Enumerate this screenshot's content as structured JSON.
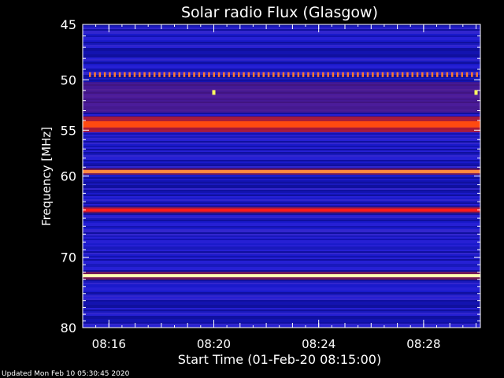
{
  "chart_data": {
    "type": "heatmap",
    "title": "Solar radio Flux (Glasgow)",
    "xlabel": "Start Time (01-Feb-20 08:15:00)",
    "ylabel": "Frequency [MHz]",
    "x_unit": "time (HH:MM)",
    "xlim": [
      "08:15:00",
      "08:30:10"
    ],
    "ylim": [
      45,
      80
    ],
    "y_log_scale": true,
    "x_ticks": [
      "08:16",
      "08:20",
      "08:24",
      "08:28"
    ],
    "y_ticks": [
      45,
      50,
      55,
      60,
      70,
      80
    ],
    "colormap": [
      "#1a1acc",
      "#3a2ad0",
      "#7a1a7a",
      "#c81a1a",
      "#ff3a1a",
      "#ffa040",
      "#ffff80",
      "#ffffff"
    ],
    "background_level": "low (blue)",
    "emission_bands": [
      {
        "freq_mhz": 49.5,
        "intensity": "high, pulsed dotted",
        "color": "#ff7a30"
      },
      {
        "freq_mhz": 51.2,
        "intensity": "sporadic point spikes",
        "color": "#ffff60"
      },
      {
        "freq_mhz": 54.4,
        "intensity": "high",
        "color": "#ff4a10"
      },
      {
        "freq_mhz": 59.5,
        "intensity": "high",
        "color": "#ff8a40"
      },
      {
        "freq_mhz": 64.0,
        "intensity": "high",
        "color": "#ff1a1a"
      },
      {
        "freq_mhz": 72.5,
        "intensity": "very high",
        "color": "#ffffb0"
      }
    ]
  },
  "footer_text": "Updated Mon Feb 10 05:30:45 2020"
}
